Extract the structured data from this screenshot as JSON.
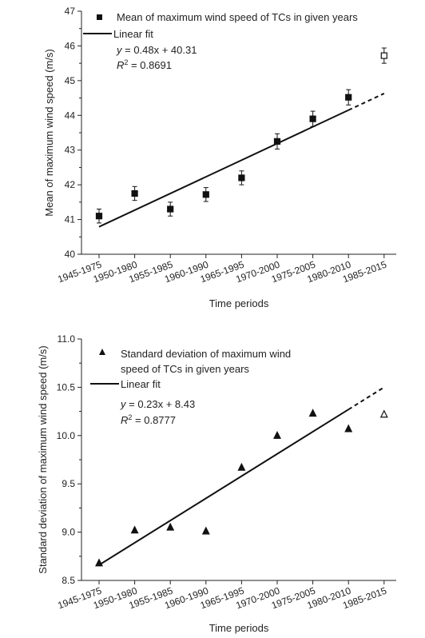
{
  "chart_data": [
    {
      "type": "scatter",
      "categories": [
        "1945-1975",
        "1950-1980",
        "1955-1985",
        "1960-1990",
        "1965-1995",
        "1970-2000",
        "1975-2005",
        "1980-2010",
        "1985-2015"
      ],
      "xlabel": "Time periods",
      "ylabel": "Mean of maximum wind speed (m/s)",
      "ylim": [
        40,
        47
      ],
      "yticks": [
        "40",
        "41",
        "42",
        "43",
        "44",
        "45",
        "46",
        "47"
      ],
      "series": [
        {
          "name": "Mean of maximum wind speed of TCs in given years",
          "marker": "square",
          "values": [
            41.1,
            41.75,
            41.3,
            41.72,
            42.2,
            43.25,
            43.9,
            44.52,
            45.72
          ],
          "errors": [
            0.2,
            0.2,
            0.2,
            0.2,
            0.2,
            0.22,
            0.22,
            0.22,
            0.22
          ],
          "hollow_last": true
        }
      ],
      "fit": {
        "name": "Linear fit",
        "slope": 0.48,
        "intercept": 40.31,
        "equation_prefix": "y",
        "equation_rest": " = 0.48x + 40.31",
        "r2_prefix": "R",
        "r2_sup": "2",
        "r2_rest": " = 0.8691",
        "solid_until_index": 7
      },
      "legend_position": "top-left",
      "grid": false
    },
    {
      "type": "scatter",
      "categories": [
        "1945-1975",
        "1950-1980",
        "1955-1985",
        "1960-1990",
        "1965-1995",
        "1970-2000",
        "1975-2005",
        "1980-2010",
        "1985-2015"
      ],
      "xlabel": "Time periods",
      "ylabel": "Standard deviation of maximum wind speed (m/s)",
      "ylim": [
        8.5,
        11.0
      ],
      "yticks": [
        "8.5",
        "9.0",
        "9.5",
        "10.0",
        "10.5",
        "11.0"
      ],
      "series": [
        {
          "name_line1": "Standard deviation of maximum wind",
          "name_line2": "speed of TCs in given years",
          "marker": "triangle",
          "values": [
            8.68,
            9.02,
            9.05,
            9.01,
            9.67,
            10.0,
            10.23,
            10.07,
            10.22
          ],
          "hollow_last": true
        }
      ],
      "fit": {
        "name": "Linear fit",
        "slope": 0.23,
        "intercept": 8.43,
        "equation_prefix": "y",
        "equation_rest": " = 0.23x + 8.43",
        "r2_prefix": "R",
        "r2_sup": "2",
        "r2_rest": " = 0.8777",
        "solid_until_index": 7
      },
      "legend_position": "top-left",
      "grid": false
    }
  ]
}
